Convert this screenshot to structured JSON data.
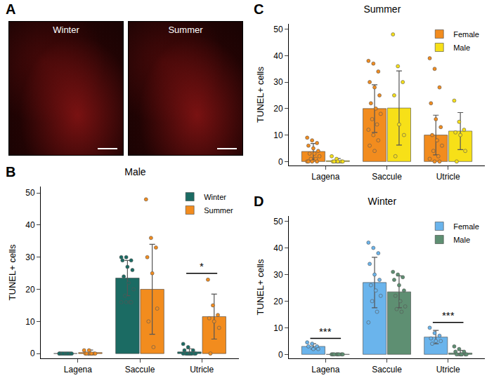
{
  "image_panel": {
    "letter": "A",
    "labels": [
      "Winter",
      "Summer"
    ]
  },
  "chart_data": [
    {
      "letter": "B",
      "type": "bar",
      "title": "Male",
      "categories": [
        "Lagena",
        "Saccule",
        "Utricle"
      ],
      "y_label": "TUNEL+ cells",
      "ylim": [
        -1.5,
        52
      ],
      "yticks": [
        0,
        10,
        20,
        30,
        40,
        50
      ],
      "grid": false,
      "legend": "top right",
      "series": [
        {
          "name": "Winter",
          "color": "#1b6b63",
          "values": [
            0,
            23.5,
            0.5
          ],
          "error": [
            0,
            5.5,
            1
          ],
          "points": [
            [
              0,
              0,
              0,
              0,
              0,
              0,
              0,
              0,
              0,
              0,
              0,
              0
            ],
            [
              30,
              30,
              29,
              29,
              27,
              26,
              24,
              22,
              20,
              18,
              16,
              16,
              16,
              16
            ],
            [
              3,
              2,
              1,
              1,
              0,
              0,
              0,
              0,
              0,
              0,
              0,
              0
            ]
          ]
        },
        {
          "name": "Summer",
          "color": "#f28c1e",
          "values": [
            0.3,
            20,
            11.5
          ],
          "error": [
            0.8,
            14,
            7
          ],
          "points": [
            [
              1,
              1,
              0,
              0,
              0,
              0,
              0,
              0
            ],
            [
              48,
              36,
              33,
              30,
              25,
              14,
              10,
              2
            ],
            [
              23,
              15,
              12,
              11,
              10,
              8,
              0
            ]
          ]
        }
      ],
      "annotations": [
        {
          "category": "Utricle",
          "text": "*",
          "y": 25
        }
      ]
    },
    {
      "letter": "C",
      "type": "bar",
      "title": "Summer",
      "categories": [
        "Lagena",
        "Saccule",
        "Utricle"
      ],
      "y_label": "TUNEL+ cells",
      "ylim": [
        -1.5,
        52
      ],
      "yticks": [
        0,
        10,
        20,
        30,
        40,
        50
      ],
      "grid": false,
      "legend": "top right",
      "series": [
        {
          "name": "Female",
          "color": "#f28c1e",
          "values": [
            3.8,
            20,
            10
          ],
          "error": [
            3,
            9,
            7.5
          ],
          "points": [
            [
              9,
              8,
              7,
              6,
              5,
              4,
              3,
              3,
              2,
              1,
              1,
              0,
              0,
              0,
              0
            ],
            [
              38,
              37,
              34,
              30,
              28,
              25,
              22,
              20,
              18,
              16,
              14,
              12,
              10,
              8,
              6,
              4
            ],
            [
              39,
              35,
              28,
              22,
              16,
              13,
              10,
              8,
              6,
              4,
              2,
              1,
              0,
              0
            ]
          ]
        },
        {
          "name": "Male",
          "color": "#f7e018",
          "values": [
            0.3,
            20.2,
            11.5
          ],
          "error": [
            0.8,
            14,
            7
          ],
          "points": [
            [
              2,
              1,
              0,
              0,
              0,
              0,
              0
            ],
            [
              48,
              36,
              30,
              25,
              14,
              10,
              2
            ],
            [
              23,
              15,
              12,
              11,
              10,
              4,
              0
            ]
          ]
        }
      ],
      "annotations": []
    },
    {
      "letter": "D",
      "type": "bar",
      "title": "Winter",
      "categories": [
        "Lagena",
        "Saccule",
        "Utricle"
      ],
      "y_label": "TUNEL+ cells",
      "ylim": [
        -1.5,
        52
      ],
      "yticks": [
        0,
        10,
        20,
        30,
        40,
        50
      ],
      "grid": false,
      "legend": "top right",
      "series": [
        {
          "name": "Female",
          "color": "#6ab4ec",
          "values": [
            3,
            27,
            6.5
          ],
          "error": [
            1,
            9.5,
            2.5
          ],
          "points": [
            [
              4.5,
              4,
              3,
              3,
              2,
              2
            ],
            [
              42,
              40,
              38,
              34,
              30,
              28,
              26,
              24,
              22,
              20,
              16,
              12
            ],
            [
              10,
              8,
              7,
              6,
              5,
              5,
              4
            ]
          ]
        },
        {
          "name": "Male",
          "color": "#5e8f72",
          "values": [
            0,
            23.5,
            0.5
          ],
          "error": [
            0,
            6,
            1
          ],
          "points": [
            [
              0,
              0,
              0,
              0,
              0,
              0,
              0,
              0
            ],
            [
              31,
              30,
              29,
              28,
              26,
              24,
              22,
              20,
              18,
              17,
              16
            ],
            [
              3,
              2,
              1,
              1,
              0,
              0,
              0,
              0,
              0
            ]
          ]
        }
      ],
      "annotations": [
        {
          "category": "Lagena",
          "text": "***",
          "y": 6
        },
        {
          "category": "Utricle",
          "text": "***",
          "y": 12
        }
      ]
    }
  ]
}
